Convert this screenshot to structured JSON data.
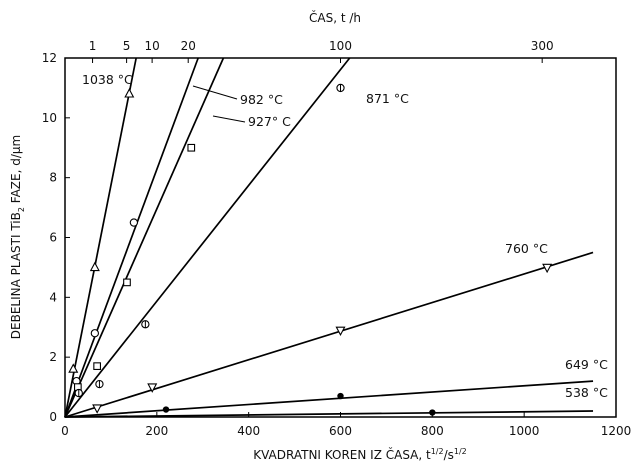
{
  "chart_data": {
    "type": "line",
    "title": "",
    "xlabel": "KVADRATNI KOREN IZ ČASA, t",
    "xlabel_sup1": "1/2",
    "xlabel_mid": "/s",
    "xlabel_sup2": "1/2",
    "ylabel_pre": "DEBELINA PLASTI TiB",
    "ylabel_sub": "2",
    "ylabel_post": " FAZE, d/µm",
    "top_xlabel": "ČAS, t /h",
    "xlim": [
      0,
      1200
    ],
    "ylim": [
      0,
      12
    ],
    "x_ticks": [
      0,
      200,
      400,
      600,
      800,
      1000,
      1200
    ],
    "x_tick_labels": [
      "0",
      "200",
      "400",
      "600",
      "800",
      "1000",
      "1200"
    ],
    "y_ticks": [
      0,
      2,
      4,
      6,
      8,
      10,
      12
    ],
    "y_tick_labels": [
      "0",
      "2",
      "4",
      "6",
      "8",
      "10",
      "12"
    ],
    "top_ticks": [
      {
        "label": "1",
        "hours": 1
      },
      {
        "label": "5",
        "hours": 5
      },
      {
        "label": "10",
        "hours": 10
      },
      {
        "label": "20",
        "hours": 20
      },
      {
        "label": "100",
        "hours": 100
      },
      {
        "label": "300",
        "hours": 300
      }
    ],
    "grid": false,
    "series": [
      {
        "name": "1038 °C",
        "marker": "triangle-up",
        "fit_end": [
          155,
          12.0
        ],
        "points": [
          [
            18,
            1.6
          ],
          [
            65,
            5.0
          ],
          [
            140,
            10.8
          ]
        ]
      },
      {
        "name": "982 °C",
        "marker": "circle",
        "fit_end": [
          290,
          12.0
        ],
        "points": [
          [
            25,
            1.2
          ],
          [
            65,
            2.8
          ],
          [
            150,
            6.5
          ]
        ]
      },
      {
        "name": "927° C",
        "marker": "square",
        "fit_end": [
          345,
          12.0
        ],
        "points": [
          [
            28,
            1.0
          ],
          [
            70,
            1.7
          ],
          [
            135,
            4.5
          ],
          [
            275,
            9.0
          ]
        ]
      },
      {
        "name": "871 °C",
        "marker": "circle-dot",
        "fit_end": [
          620,
          12.0
        ],
        "points": [
          [
            30,
            0.8
          ],
          [
            75,
            1.1
          ],
          [
            175,
            3.1
          ],
          [
            600,
            11.0
          ]
        ]
      },
      {
        "name": "760 °C",
        "marker": "triangle-down",
        "fit_end": [
          1150,
          5.5
        ],
        "points": [
          [
            70,
            0.3
          ],
          [
            190,
            1.0
          ],
          [
            600,
            2.9
          ],
          [
            1050,
            5.0
          ]
        ]
      },
      {
        "name": "649 °C",
        "marker": "filled-circle",
        "fit_end": [
          1150,
          1.2
        ],
        "points": [
          [
            220,
            0.25
          ],
          [
            600,
            0.7
          ]
        ]
      },
      {
        "name": "538 °C",
        "marker": "filled-circle",
        "fit_end": [
          1150,
          0.2
        ],
        "points": [
          [
            800,
            0.15
          ]
        ]
      }
    ],
    "line_color": "#000000"
  }
}
